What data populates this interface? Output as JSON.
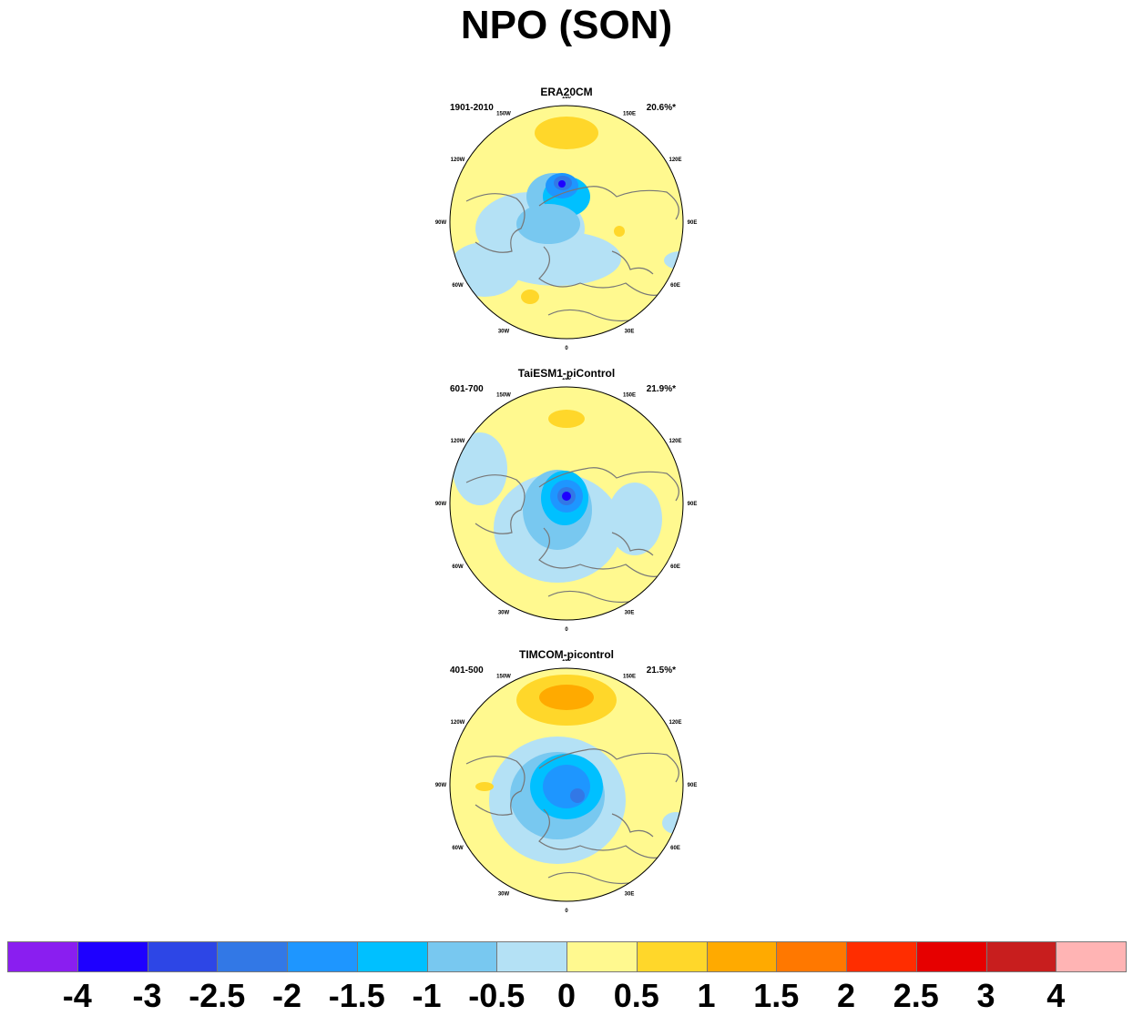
{
  "title": "NPO (SON)",
  "panels": [
    {
      "title": "ERA20CM",
      "period": "1901-2010",
      "variance": "20.6%*"
    },
    {
      "title": "TaiESM1-piControl",
      "period": "601-700",
      "variance": "21.9%*"
    },
    {
      "title": "TIMCOM-picontrol",
      "period": "401-500",
      "variance": "21.5%*"
    }
  ],
  "longitude_labels": [
    "180",
    "150E",
    "120E",
    "90E",
    "60E",
    "30E",
    "0",
    "30W",
    "60W",
    "90W",
    "120W",
    "150W"
  ],
  "colorbar": {
    "colors": [
      "#8a1ef0",
      "#1e00ff",
      "#2d46e6",
      "#3278e6",
      "#1e96ff",
      "#00c0ff",
      "#78c8f0",
      "#b4e1f5",
      "#fff98f",
      "#ffd72a",
      "#ffaa00",
      "#ff7800",
      "#ff2d00",
      "#e60000",
      "#c81e1e",
      "#ffb4b4"
    ],
    "labels": [
      "-4",
      "-3",
      "-2.5",
      "-2",
      "-1.5",
      "-1",
      "-0.5",
      "0",
      "0.5",
      "1",
      "1.5",
      "2",
      "2.5",
      "3",
      "4"
    ]
  }
}
